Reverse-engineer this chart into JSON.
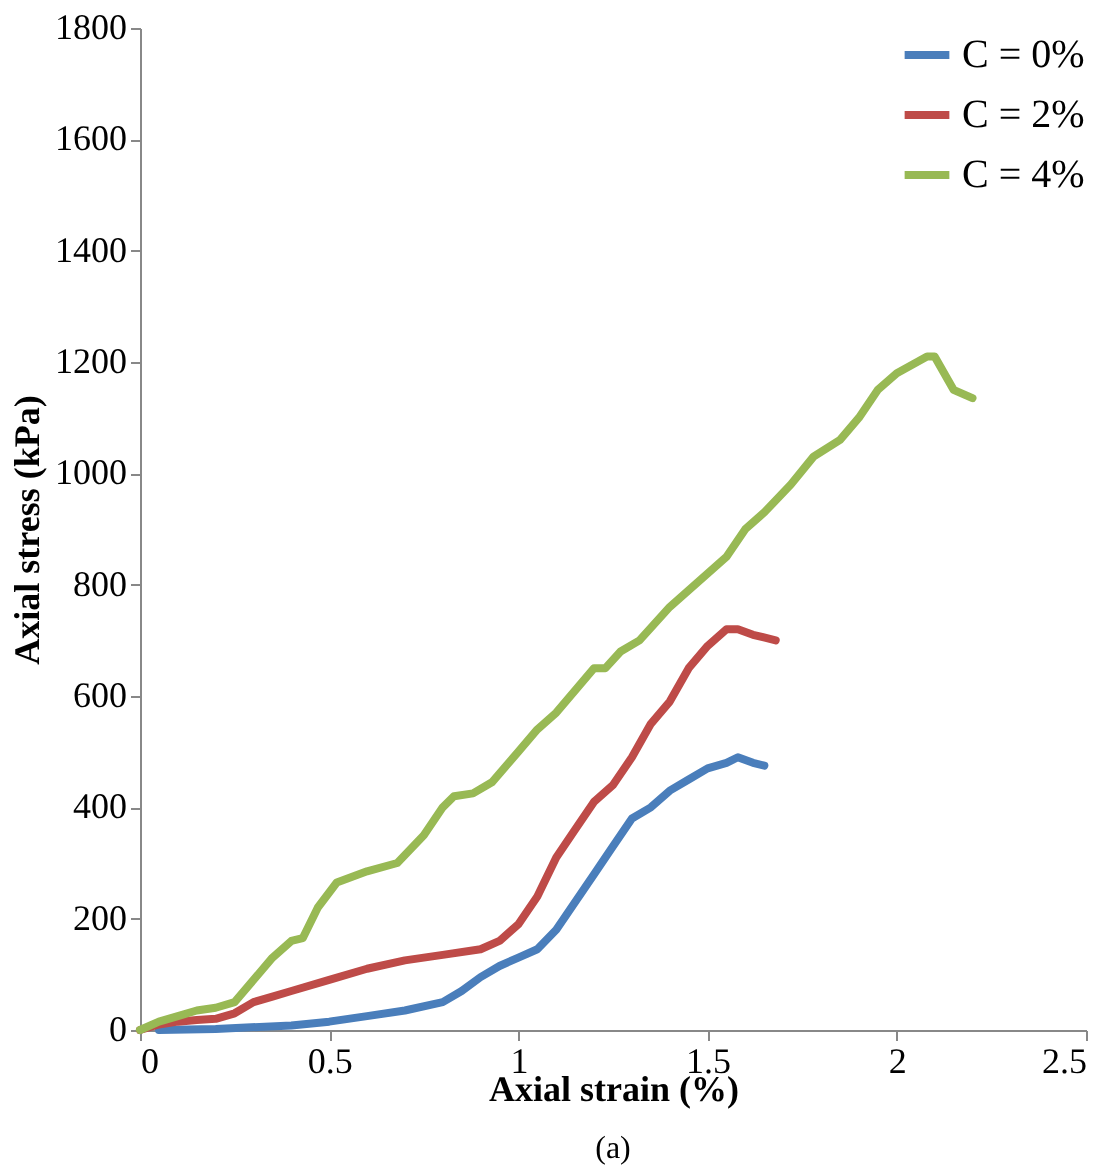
{
  "chart_data": {
    "type": "line",
    "xlabel": "Axial strain (%)",
    "ylabel": "Axial stress (kPa)",
    "xlim": [
      0,
      2.5
    ],
    "xticks": [
      0,
      0.5,
      1,
      1.5,
      2,
      2.5
    ],
    "ylim": [
      0,
      1800
    ],
    "yticks": [
      0,
      200,
      400,
      600,
      800,
      1000,
      1200,
      1400,
      1600,
      1800
    ],
    "grid": false,
    "legend": "top right",
    "marker": "none",
    "line_style": "solid",
    "annotations": [
      "(a)"
    ],
    "series": [
      {
        "name": "C = 0%",
        "color": "#4a7ebb",
        "x": [
          0.05,
          0.2,
          0.4,
          0.5,
          0.6,
          0.7,
          0.8,
          0.85,
          0.9,
          0.95,
          1.0,
          1.05,
          1.1,
          1.15,
          1.2,
          1.25,
          1.3,
          1.35,
          1.4,
          1.45,
          1.5,
          1.55,
          1.58,
          1.62,
          1.65
        ],
        "values": [
          0,
          2,
          8,
          15,
          25,
          35,
          50,
          70,
          95,
          115,
          130,
          145,
          180,
          230,
          280,
          330,
          380,
          400,
          430,
          450,
          470,
          480,
          490,
          480,
          475
        ]
      },
      {
        "name": "C = 2%",
        "color": "#be4b48",
        "x": [
          0,
          0.05,
          0.1,
          0.15,
          0.2,
          0.25,
          0.3,
          0.35,
          0.4,
          0.5,
          0.6,
          0.7,
          0.8,
          0.9,
          0.95,
          1.0,
          1.05,
          1.1,
          1.15,
          1.2,
          1.25,
          1.3,
          1.35,
          1.4,
          1.45,
          1.5,
          1.55,
          1.58,
          1.62,
          1.68
        ],
        "values": [
          0,
          10,
          15,
          18,
          20,
          30,
          50,
          60,
          70,
          90,
          110,
          125,
          135,
          145,
          160,
          190,
          240,
          310,
          360,
          410,
          440,
          490,
          550,
          590,
          650,
          690,
          720,
          720,
          710,
          700
        ]
      },
      {
        "name": "C = 4%",
        "color": "#98b954",
        "x": [
          0,
          0.05,
          0.1,
          0.15,
          0.2,
          0.25,
          0.3,
          0.35,
          0.4,
          0.43,
          0.47,
          0.52,
          0.6,
          0.68,
          0.75,
          0.8,
          0.83,
          0.88,
          0.93,
          1.0,
          1.05,
          1.1,
          1.15,
          1.2,
          1.23,
          1.27,
          1.32,
          1.4,
          1.5,
          1.55,
          1.6,
          1.65,
          1.72,
          1.78,
          1.85,
          1.9,
          1.95,
          2.0,
          2.08,
          2.1,
          2.15,
          2.2
        ],
        "values": [
          0,
          15,
          25,
          35,
          40,
          50,
          90,
          130,
          160,
          165,
          220,
          265,
          285,
          300,
          350,
          400,
          420,
          425,
          445,
          500,
          540,
          570,
          610,
          650,
          650,
          680,
          700,
          760,
          820,
          850,
          900,
          930,
          980,
          1030,
          1060,
          1100,
          1150,
          1180,
          1210,
          1210,
          1150,
          1135
        ]
      }
    ]
  }
}
